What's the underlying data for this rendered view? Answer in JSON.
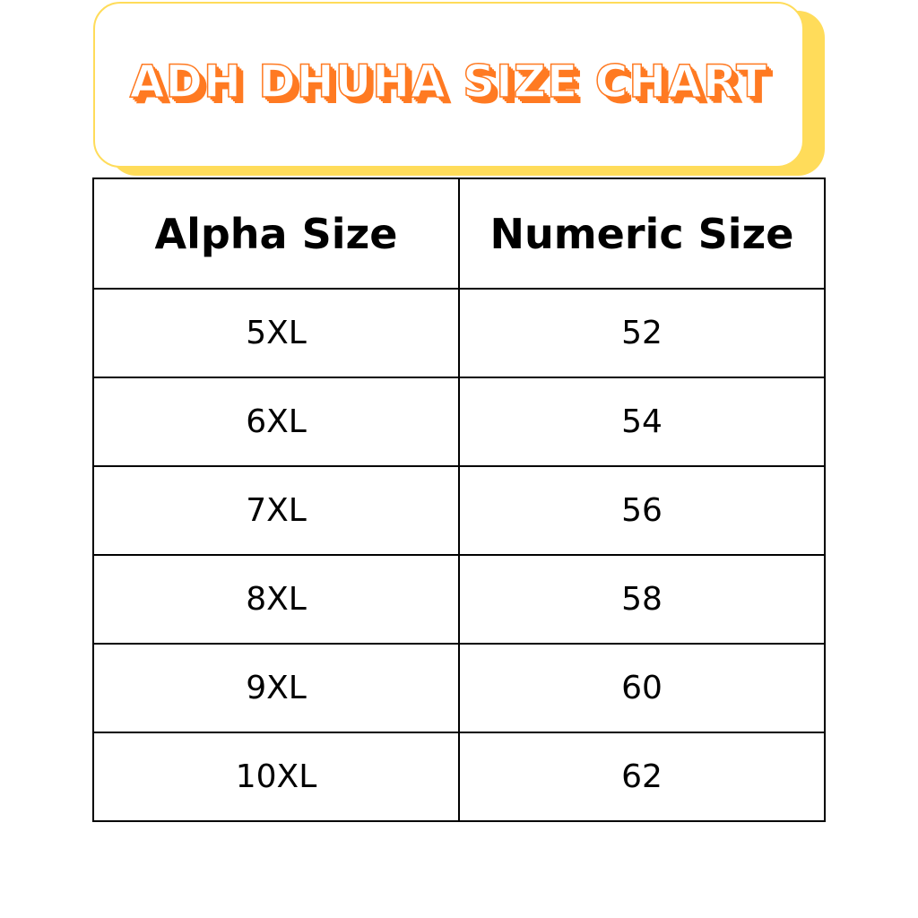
{
  "title": "ADH DHUHA SIZE CHART",
  "colors": {
    "title_orange": "#FF7A22",
    "box_yellow": "#FFDC5A"
  },
  "table": {
    "headers": [
      "Alpha Size",
      "Numeric Size"
    ],
    "rows": [
      [
        "5XL",
        "52"
      ],
      [
        "6XL",
        "54"
      ],
      [
        "7XL",
        "56"
      ],
      [
        "8XL",
        "58"
      ],
      [
        "9XL",
        "60"
      ],
      [
        "10XL",
        "62"
      ]
    ]
  }
}
